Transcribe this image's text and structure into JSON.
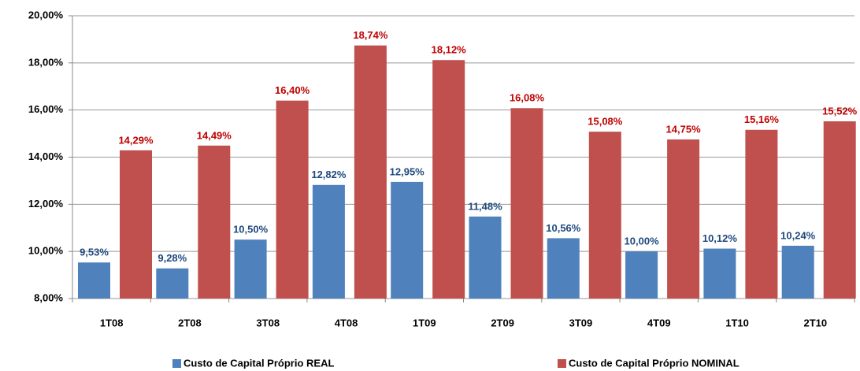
{
  "chart_data": {
    "type": "bar",
    "categories": [
      "1T08",
      "2T08",
      "3T08",
      "4T08",
      "1T09",
      "2T09",
      "3T09",
      "4T09",
      "1T10",
      "2T10"
    ],
    "series": [
      {
        "name": "Custo de Capital Próprio REAL",
        "color": "#4f81bd",
        "label_color": "#1f497d",
        "values": [
          9.53,
          9.28,
          10.5,
          12.82,
          12.95,
          11.48,
          10.56,
          10.0,
          10.12,
          10.24
        ],
        "value_labels": [
          "9,53%",
          "9,28%",
          "10,50%",
          "12,82%",
          "12,95%",
          "11,48%",
          "10,56%",
          "10,00%",
          "10,12%",
          "10,24%"
        ]
      },
      {
        "name": "Custo de Capital Próprio NOMINAL",
        "color": "#c0504d",
        "label_color": "#c00000",
        "values": [
          14.29,
          14.49,
          16.4,
          18.74,
          18.12,
          16.08,
          15.08,
          14.75,
          15.16,
          15.52
        ],
        "value_labels": [
          "14,29%",
          "14,49%",
          "16,40%",
          "18,74%",
          "18,12%",
          "16,08%",
          "15,08%",
          "14,75%",
          "15,16%",
          "15,52%"
        ]
      }
    ],
    "ylim": [
      8,
      20
    ],
    "yticks": [
      {
        "value": 8,
        "label": "8,00%"
      },
      {
        "value": 10,
        "label": "10,00%"
      },
      {
        "value": 12,
        "label": "12,00%"
      },
      {
        "value": 14,
        "label": "14,00%"
      },
      {
        "value": 16,
        "label": "16,00%"
      },
      {
        "value": 18,
        "label": "18,00%"
      },
      {
        "value": 20,
        "label": "20,00%"
      }
    ],
    "grid": true,
    "legend": "bottom"
  }
}
